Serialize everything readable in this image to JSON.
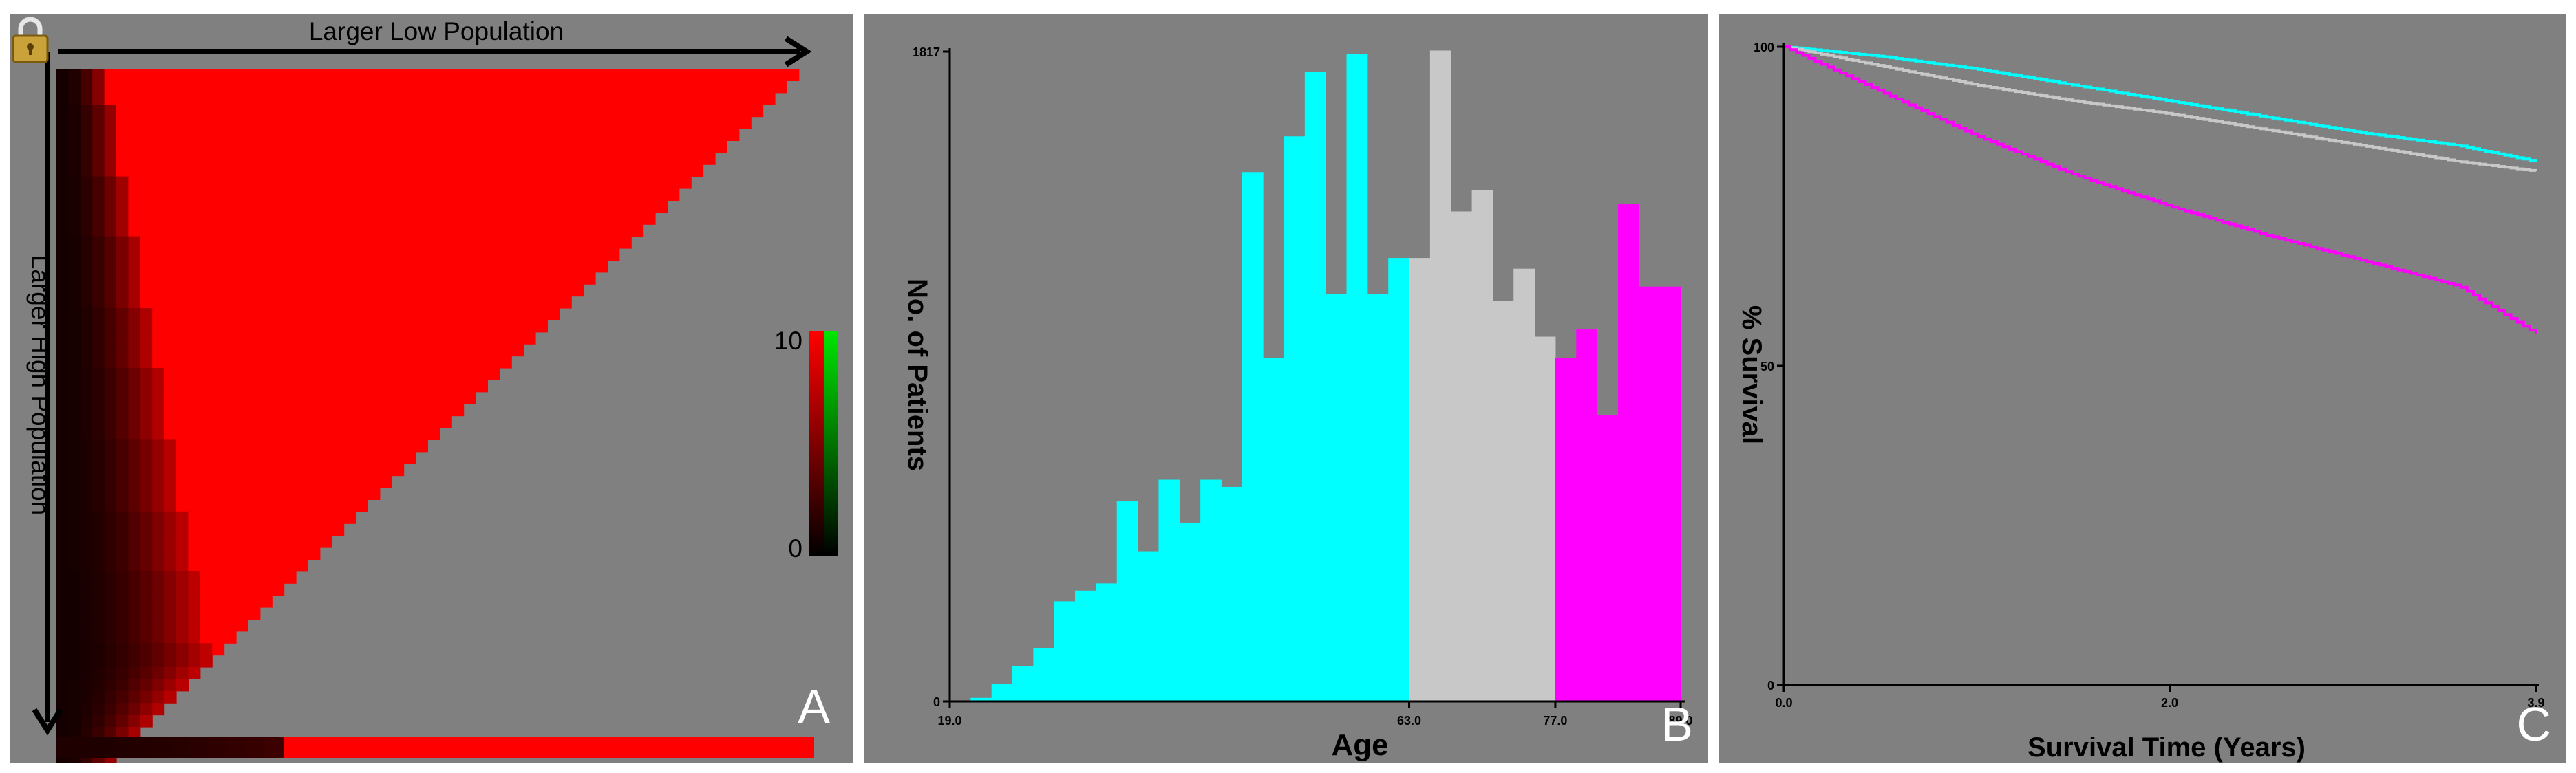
{
  "panels": {
    "a": {
      "letter": "A",
      "top_axis_label": "Larger Low Population",
      "left_axis_label": "Larger High Population",
      "colorbar_max": "10",
      "colorbar_min": "0",
      "colors": {
        "red": "#ff0000",
        "green": "#00e600",
        "background": "#808080"
      },
      "lock_icon": "padlock-icon"
    },
    "b": {
      "letter": "B"
    },
    "c": {
      "letter": "C"
    }
  },
  "chart_data": [
    {
      "type": "heatmap",
      "title": "",
      "xlabel": "Larger Low Population",
      "ylabel": "Larger High Population",
      "colorbar": {
        "min": 0,
        "max": 10,
        "labels": [
          "10",
          "0"
        ]
      },
      "note": ""
    },
    {
      "type": "bar",
      "title": "",
      "xlabel": "Age",
      "ylabel": "No. of Patients",
      "xlim": [
        19.0,
        89.0
      ],
      "ylim": [
        0,
        1817
      ],
      "x_tick_labels": [
        "19.0",
        "63.0",
        "77.0",
        "89.0"
      ],
      "y_tick_labels": [
        "0",
        "1817"
      ],
      "bin_width": 2,
      "bin_starts": [
        19,
        21,
        23,
        25,
        27,
        29,
        31,
        33,
        35,
        37,
        39,
        41,
        43,
        45,
        47,
        49,
        51,
        53,
        55,
        57,
        59,
        61,
        63,
        65,
        67,
        69,
        71,
        73,
        75,
        77,
        79,
        81,
        83,
        85,
        87
      ],
      "values": [
        0,
        10,
        50,
        100,
        150,
        280,
        310,
        330,
        560,
        420,
        620,
        500,
        620,
        600,
        1480,
        960,
        1580,
        1760,
        1140,
        1810,
        1140,
        1240,
        1240,
        1820,
        1370,
        1430,
        1120,
        1210,
        1020,
        960,
        1040,
        800,
        1390,
        1160,
        1160
      ],
      "groups": [
        {
          "from": 19,
          "to": 63,
          "color": "#00ffff"
        },
        {
          "from": 63,
          "to": 77,
          "color": "#c8c8c8"
        },
        {
          "from": 77,
          "to": 89,
          "color": "#ff00ff"
        }
      ]
    },
    {
      "type": "line",
      "title": "",
      "xlabel": "Survival Time (Years)",
      "ylabel": "% Survival",
      "xlim": [
        0.0,
        3.9
      ],
      "ylim": [
        0,
        100
      ],
      "x_tick_labels": [
        "0.0",
        "2.0",
        "3.9"
      ],
      "y_tick_labels": [
        "100",
        "50",
        "0"
      ],
      "series": [
        {
          "color": "#00ffff",
          "x": [
            0,
            0.5,
            1.0,
            1.5,
            2.0,
            2.5,
            3.0,
            3.5,
            3.9
          ],
          "y": [
            100,
            98.5,
            96.5,
            94,
            91.5,
            89,
            86.5,
            84.5,
            82
          ]
        },
        {
          "color": "#c8c8c8",
          "x": [
            0,
            0.5,
            1.0,
            1.5,
            2.0,
            2.5,
            3.0,
            3.5,
            3.9
          ],
          "y": [
            100,
            97,
            94,
            91.5,
            89.5,
            87,
            84.5,
            82,
            80.5
          ]
        },
        {
          "color": "#ff00ff",
          "x": [
            0,
            0.5,
            1.0,
            1.5,
            2.0,
            2.5,
            3.0,
            3.5,
            3.9
          ],
          "y": [
            100,
            93,
            86,
            80,
            75,
            70.5,
            66.5,
            62.5,
            55
          ]
        }
      ]
    }
  ]
}
